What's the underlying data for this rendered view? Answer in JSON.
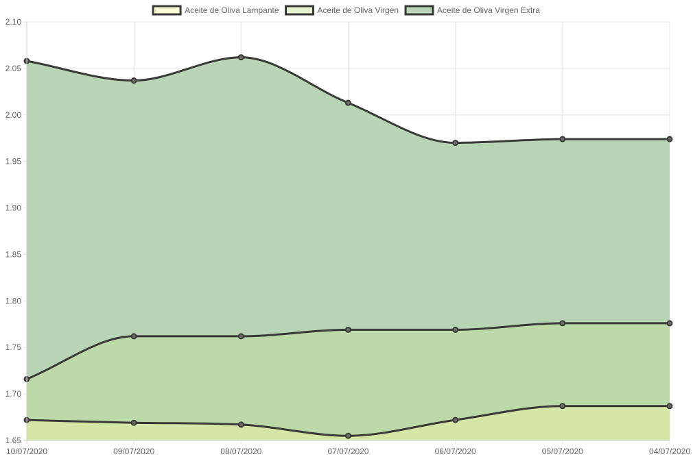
{
  "chart_data": {
    "type": "area",
    "categories": [
      "10/07/2020",
      "09/07/2020",
      "08/07/2020",
      "07/07/2020",
      "06/07/2020",
      "05/07/2020",
      "04/07/2020"
    ],
    "series": [
      {
        "name": "Aceite de Oliva Lampante",
        "values": [
          1.672,
          1.669,
          1.667,
          1.655,
          1.672,
          1.687,
          1.687
        ],
        "fill": "#d6e6a6",
        "legend_fill": "#fbfcd6"
      },
      {
        "name": "Aceite de Oliva Virgen",
        "values": [
          1.716,
          1.762,
          1.762,
          1.769,
          1.769,
          1.776,
          1.776
        ],
        "fill": "#bcd9a8",
        "legend_fill": "#e4efcc"
      },
      {
        "name": "Aceite de Oliva Virgen Extra",
        "values": [
          2.058,
          2.037,
          2.062,
          2.013,
          1.97,
          1.974,
          1.974
        ],
        "fill": "#b7d5b4",
        "legend_fill": "#b7d5b4"
      }
    ],
    "ylim": [
      1.65,
      2.1
    ],
    "yticks": [
      "1.65",
      "1.70",
      "1.75",
      "1.80",
      "1.85",
      "1.90",
      "1.95",
      "2.00",
      "2.05",
      "2.10"
    ],
    "line_color": "#3a3a38",
    "grid": true,
    "legend_position": "top-center",
    "title": "",
    "xlabel": "",
    "ylabel": ""
  }
}
